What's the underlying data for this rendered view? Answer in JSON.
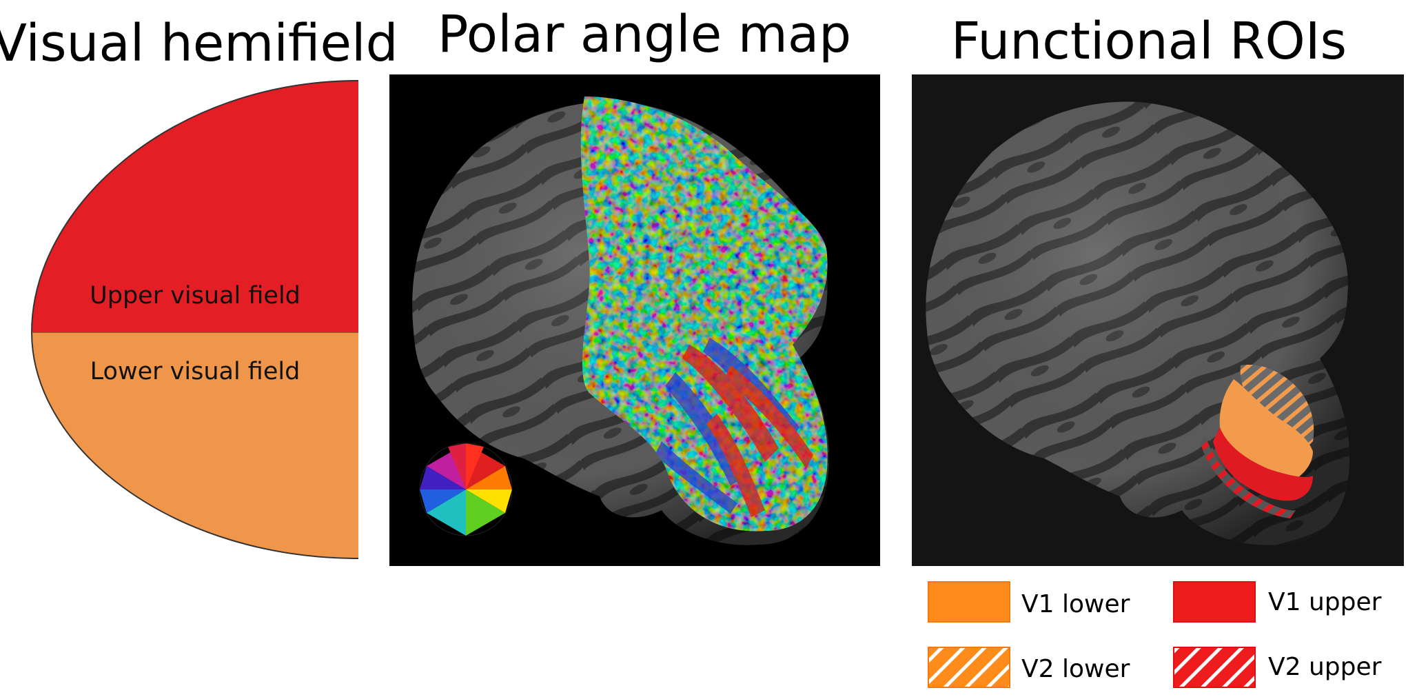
{
  "titles": {
    "hemifield": "Visual hemifield",
    "polar": "Polar angle map",
    "rois": "Functional ROIs"
  },
  "hemifield": {
    "upper_label": "Upper visual field",
    "lower_label": "Lower visual field",
    "upper_color": "#E31E24",
    "lower_color": "#F0964A"
  },
  "legend": {
    "v1_lower": "V1 lower",
    "v1_upper": "V1 upper",
    "v2_lower": "V2 lower",
    "v2_upper": "V2 upper",
    "orange": "#FF8C1A",
    "red": "#EE1C1C"
  },
  "colors": {
    "panel_bg": "#000000",
    "roi_panel_bg": "#141414",
    "brain_dark": "#3a3a3a",
    "brain_light": "#5c5c5c"
  }
}
